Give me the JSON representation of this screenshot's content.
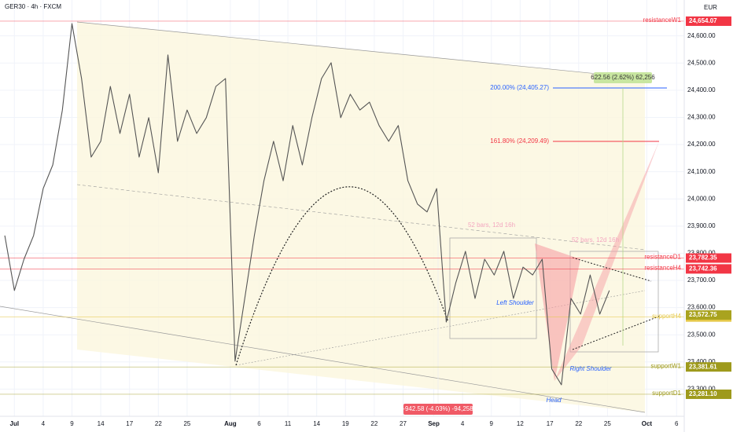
{
  "chart_data": {
    "type": "line",
    "title": "GER30 · 4h · FXCM",
    "currency": "EUR",
    "x": [
      -1,
      0,
      1,
      2,
      3,
      4,
      5,
      6,
      7,
      8,
      9,
      10,
      11,
      12,
      13,
      14,
      15,
      16,
      17,
      18,
      19,
      20,
      21,
      22,
      23,
      24,
      25,
      26,
      27,
      28,
      29,
      30,
      31,
      32,
      33,
      34,
      35,
      36,
      37,
      38,
      39,
      40,
      41,
      42,
      43,
      44,
      45,
      46,
      47,
      48,
      49,
      50,
      51,
      52,
      53,
      54,
      55,
      56,
      57,
      58,
      59,
      60,
      61,
      62
    ],
    "series": [
      {
        "color": "#555555",
        "values": [
          23865,
          23663,
          23778,
          23865,
          24038,
          24125,
          24327,
          24645,
          24443,
          24154,
          24212,
          24414,
          24241,
          24385,
          24154,
          24299,
          24096,
          24530,
          24212,
          24327,
          24241,
          24299,
          24414,
          24443,
          23403,
          23634,
          23865,
          24067,
          24212,
          24067,
          24270,
          24125,
          24299,
          24443,
          24501,
          24299,
          24385,
          24327,
          24356,
          24270,
          24212,
          24270,
          24067,
          23981,
          23952,
          24038,
          23547,
          23692,
          23807,
          23634,
          23778,
          23720,
          23807,
          23634,
          23749,
          23720,
          23778,
          23374,
          23316,
          23634,
          23576,
          23720,
          23576,
          23663
        ]
      }
    ],
    "xlim": [
      -1.5,
      69.8
    ],
    "xticks": [
      {
        "value": 0,
        "label": "Jul"
      },
      {
        "value": 3,
        "label": "4"
      },
      {
        "value": 6,
        "label": "9"
      },
      {
        "value": 9,
        "label": "14"
      },
      {
        "value": 12,
        "label": "17"
      },
      {
        "value": 15,
        "label": "22"
      },
      {
        "value": 18,
        "label": "25"
      },
      {
        "value": 22.5,
        "label": "Aug"
      },
      {
        "value": 25.5,
        "label": "6"
      },
      {
        "value": 28.5,
        "label": "11"
      },
      {
        "value": 31.5,
        "label": "14"
      },
      {
        "value": 34.5,
        "label": "19"
      },
      {
        "value": 37.5,
        "label": "22"
      },
      {
        "value": 40.5,
        "label": "27"
      },
      {
        "value": 43.7,
        "label": "Sep"
      },
      {
        "value": 46.7,
        "label": "4"
      },
      {
        "value": 49.7,
        "label": "9"
      },
      {
        "value": 52.7,
        "label": "12"
      },
      {
        "value": 55.8,
        "label": "17"
      },
      {
        "value": 58.8,
        "label": "22"
      },
      {
        "value": 61.8,
        "label": "25"
      },
      {
        "value": 65.9,
        "label": "Oct"
      },
      {
        "value": 69,
        "label": "6"
      }
    ],
    "ylim": [
      23200,
      24732
    ],
    "yticks": [
      {
        "value": 23300,
        "label": "23,300.00"
      },
      {
        "value": 23400,
        "label": "23,400.00"
      },
      {
        "value": 23500,
        "label": "23,500.00"
      },
      {
        "value": 23600,
        "label": "23,600.00"
      },
      {
        "value": 23700,
        "label": "23,700.00"
      },
      {
        "value": 23800,
        "label": "23,800.00"
      },
      {
        "value": 23900,
        "label": "23,900.00"
      },
      {
        "value": 24000,
        "label": "24,000.00"
      },
      {
        "value": 24100,
        "label": "24,100.00"
      },
      {
        "value": 24200,
        "label": "24,200.00"
      },
      {
        "value": 24300,
        "label": "24,300.00"
      },
      {
        "value": 24400,
        "label": "24,400.00"
      },
      {
        "value": 24500,
        "label": "24,500.00"
      },
      {
        "value": 24600,
        "label": "24,600.00"
      }
    ],
    "levels": [
      {
        "name": "resistanceW1",
        "value": 24654.07,
        "label": "24,654.07",
        "color": "#f23645"
      },
      {
        "name": "resistanceD1",
        "value": 23782.35,
        "label": "23,782.35",
        "color": "#f23645"
      },
      {
        "name": "resistanceH4",
        "value": 23742.36,
        "label": "23,742.36",
        "color": "#f23645"
      },
      {
        "name": "supportH4",
        "value": 23565.24,
        "label": "23,565.24",
        "color": "#e6c94a"
      },
      {
        "name": "supportW1",
        "value": 23381.61,
        "label": "23,381.61",
        "color": "#9e9a1c"
      },
      {
        "name": "supportD1",
        "value": 23281.1,
        "label": "23,281.10",
        "color": "#9e9a1c"
      }
    ],
    "last_price": {
      "value": 23572.75,
      "label": "23,572.75",
      "color": "#a9a31f"
    },
    "annotations": [
      "200.00% (24,405.27)",
      "161.80% (24,209.49)",
      "622.56 (2.62%) 62,256",
      "-942.58 (-4.03%) -94,258",
      "52 bars, 12d 16h",
      "52 bars, 12d 16h",
      "Left Shoulder",
      "Right Shoulder",
      "Head"
    ]
  }
}
